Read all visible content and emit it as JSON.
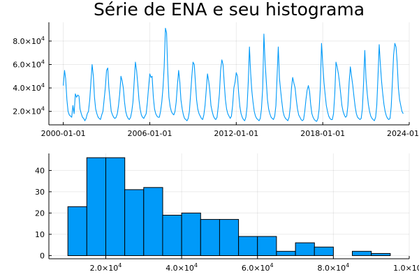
{
  "colors": {
    "series": "#009af9",
    "background": "#ffffff"
  },
  "chart_data": [
    {
      "type": "line",
      "title": "Série de ENA e seu histograma",
      "xlabel": "",
      "ylabel": "",
      "grid": true,
      "legend": "none",
      "x_start": "2000-01-01",
      "x_step": "month",
      "xlim": [
        "1999-01-01",
        "2024-01-01"
      ],
      "ylim": [
        8500,
        96000
      ],
      "x_ticks": [
        "2000-01-01",
        "2006-01-01",
        "2012-01-01",
        "2018-01-01",
        "2024-01-01"
      ],
      "y_ticks": [
        {
          "value": 20000,
          "mantissa": "2.0",
          "base": "×10",
          "exp": "4"
        },
        {
          "value": 40000,
          "mantissa": "4.0",
          "base": "×10",
          "exp": "4"
        },
        {
          "value": 60000,
          "mantissa": "6.0",
          "base": "×10",
          "exp": "4"
        },
        {
          "value": 80000,
          "mantissa": "8.0",
          "base": "×10",
          "exp": "4"
        }
      ],
      "series": [
        {
          "values": [
            42000,
            55000,
            48000,
            30000,
            20000,
            17000,
            16000,
            15000,
            25000,
            18000,
            35000,
            32000,
            34000,
            33000,
            22000,
            18000,
            15000,
            14000,
            12000,
            14000,
            18000,
            20000,
            30000,
            45000,
            60000,
            50000,
            32000,
            22000,
            18000,
            15000,
            14000,
            13000,
            17000,
            20000,
            30000,
            40000,
            55000,
            57000,
            40000,
            30000,
            20000,
            17000,
            15000,
            14000,
            15000,
            18000,
            25000,
            35000,
            50000,
            46000,
            40000,
            28000,
            20000,
            16000,
            14000,
            13000,
            15000,
            20000,
            28000,
            45000,
            62000,
            55000,
            44000,
            30000,
            22000,
            17000,
            15000,
            14000,
            16000,
            18000,
            28000,
            40000,
            52000,
            49000,
            50000,
            32000,
            22000,
            18000,
            16000,
            15000,
            15000,
            20000,
            28000,
            40000,
            58000,
            91000,
            87000,
            55000,
            32000,
            24000,
            20000,
            18000,
            17000,
            20000,
            28000,
            42000,
            55000,
            45000,
            30000,
            22000,
            17000,
            14000,
            13000,
            12000,
            14000,
            20000,
            35000,
            50000,
            62000,
            60000,
            45000,
            30000,
            22000,
            18000,
            16000,
            14000,
            13000,
            17000,
            25000,
            38000,
            52000,
            46000,
            38000,
            25000,
            20000,
            16000,
            14000,
            13000,
            15000,
            24000,
            35000,
            55000,
            64000,
            60000,
            45000,
            30000,
            22000,
            18000,
            16000,
            14000,
            16000,
            25000,
            40000,
            45000,
            53000,
            50000,
            36000,
            24000,
            18000,
            15000,
            13000,
            12000,
            15000,
            24000,
            45000,
            75000,
            52000,
            37000,
            28000,
            20000,
            16000,
            14000,
            13000,
            12000,
            14000,
            22000,
            40000,
            86000,
            62000,
            45000,
            30000,
            22000,
            18000,
            15000,
            14000,
            13000,
            16000,
            25000,
            50000,
            75000,
            48000,
            37000,
            28000,
            20000,
            16000,
            14000,
            13000,
            12000,
            15000,
            24000,
            40000,
            49000,
            44000,
            40000,
            30000,
            22000,
            17000,
            15000,
            13000,
            12000,
            13000,
            20000,
            30000,
            38000,
            42000,
            37000,
            26000,
            18000,
            15000,
            13000,
            12000,
            11500,
            14000,
            22000,
            40000,
            78000,
            60000,
            45000,
            35000,
            25000,
            20000,
            16000,
            14000,
            13000,
            13000,
            18000,
            35000,
            62000,
            58000,
            52000,
            45000,
            35000,
            25000,
            20000,
            17000,
            15000,
            16000,
            25000,
            45000,
            58000,
            50000,
            42000,
            33000,
            24000,
            18000,
            15000,
            14000,
            13000,
            14000,
            22000,
            45000,
            72000,
            48000,
            35000,
            26000,
            20000,
            16000,
            14000,
            13000,
            12000,
            15000,
            25000,
            50000,
            77000,
            60000,
            45000,
            35000,
            26000,
            20000,
            16000,
            14000,
            13000,
            14000,
            24000,
            45000,
            68000,
            78000,
            75000,
            62000,
            40000,
            30000,
            25000,
            20000,
            18000
          ]
        }
      ]
    },
    {
      "type": "bar",
      "title": "",
      "xlabel": "",
      "ylabel": "",
      "grid": true,
      "legend": "none",
      "bins": [
        [
          10000,
          15000
        ],
        [
          15000,
          20000
        ],
        [
          20000,
          25000
        ],
        [
          25000,
          30000
        ],
        [
          30000,
          35000
        ],
        [
          35000,
          40000
        ],
        [
          40000,
          45000
        ],
        [
          45000,
          50000
        ],
        [
          50000,
          55000
        ],
        [
          55000,
          60000
        ],
        [
          60000,
          65000
        ],
        [
          65000,
          70000
        ],
        [
          70000,
          75000
        ],
        [
          75000,
          80000
        ],
        [
          80000,
          85000
        ],
        [
          85000,
          90000
        ],
        [
          90000,
          95000
        ]
      ],
      "values": [
        23,
        46,
        46,
        31,
        32,
        19,
        20,
        17,
        17,
        9,
        9,
        2,
        6,
        4,
        0,
        2,
        1
      ],
      "xlim": [
        5000,
        100000
      ],
      "ylim": [
        -1.5,
        48
      ],
      "x_ticks": [
        {
          "value": 20000,
          "mantissa": "2.0",
          "base": "×10",
          "exp": "4"
        },
        {
          "value": 40000,
          "mantissa": "4.0",
          "base": "×10",
          "exp": "4"
        },
        {
          "value": 60000,
          "mantissa": "6.0",
          "base": "×10",
          "exp": "4"
        },
        {
          "value": 80000,
          "mantissa": "8.0",
          "base": "×10",
          "exp": "4"
        },
        {
          "value": 100000,
          "mantissa": "1.0",
          "base": "×10",
          "exp": "5"
        }
      ],
      "y_ticks": [
        {
          "value": 0,
          "label": "0"
        },
        {
          "value": 10,
          "label": "10"
        },
        {
          "value": 20,
          "label": "20"
        },
        {
          "value": 30,
          "label": "30"
        },
        {
          "value": 40,
          "label": "40"
        }
      ]
    }
  ]
}
